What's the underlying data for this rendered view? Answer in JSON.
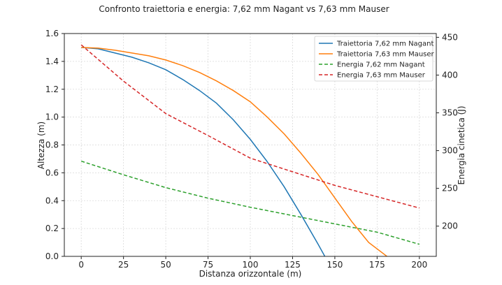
{
  "chart_data": {
    "type": "line",
    "title": "Confronto traiettoria e energia: 7,62 mm Nagant vs 7,63 mm Mauser",
    "xlabel": "Distanza orizzontale (m)",
    "ylabel_left": "Altezza (m)",
    "ylabel_right": "Energia cinetica (J)",
    "xlim": [
      -10,
      210
    ],
    "ylim_left": [
      0,
      1.6
    ],
    "ylim_right": [
      160,
      455
    ],
    "x_ticks": [
      0,
      25,
      50,
      75,
      100,
      125,
      150,
      175,
      200
    ],
    "y_ticks_left": [
      0.0,
      0.2,
      0.4,
      0.6,
      0.8,
      1.0,
      1.2,
      1.4,
      1.6
    ],
    "y_ticks_right": [
      200,
      250,
      300,
      350,
      400,
      450
    ],
    "grid": true,
    "legend_position": "top-right",
    "series": [
      {
        "name": "Traiettoria 7,62 mm Nagant",
        "axis": "left",
        "style": "solid",
        "color": "#1f77b4",
        "points": [
          [
            0,
            1.5
          ],
          [
            10,
            1.49
          ],
          [
            20,
            1.46
          ],
          [
            30,
            1.43
          ],
          [
            40,
            1.39
          ],
          [
            50,
            1.34
          ],
          [
            60,
            1.27
          ],
          [
            70,
            1.19
          ],
          [
            80,
            1.1
          ],
          [
            90,
            0.98
          ],
          [
            100,
            0.84
          ],
          [
            110,
            0.68
          ],
          [
            120,
            0.5
          ],
          [
            130,
            0.3
          ],
          [
            140,
            0.09
          ],
          [
            145,
            -0.02
          ]
        ]
      },
      {
        "name": "Traiettoria 7,63 mm Mauser",
        "axis": "left",
        "style": "solid",
        "color": "#ff7f0e",
        "points": [
          [
            0,
            1.5
          ],
          [
            10,
            1.495
          ],
          [
            20,
            1.48
          ],
          [
            30,
            1.46
          ],
          [
            40,
            1.44
          ],
          [
            50,
            1.41
          ],
          [
            60,
            1.37
          ],
          [
            70,
            1.32
          ],
          [
            80,
            1.26
          ],
          [
            90,
            1.19
          ],
          [
            100,
            1.11
          ],
          [
            110,
            1.0
          ],
          [
            120,
            0.88
          ],
          [
            130,
            0.74
          ],
          [
            140,
            0.59
          ],
          [
            150,
            0.42
          ],
          [
            160,
            0.25
          ],
          [
            170,
            0.1
          ],
          [
            183,
            -0.02
          ]
        ]
      },
      {
        "name": "Energia 7,62 mm Nagant",
        "axis": "right",
        "style": "dashed",
        "color": "#2ca02c",
        "points": [
          [
            0,
            286
          ],
          [
            25,
            268
          ],
          [
            50,
            251
          ],
          [
            75,
            237
          ],
          [
            100,
            225
          ],
          [
            125,
            214
          ],
          [
            150,
            203
          ],
          [
            175,
            192
          ],
          [
            200,
            176
          ]
        ]
      },
      {
        "name": "Energia 7,63 mm Mauser",
        "axis": "right",
        "style": "dashed",
        "color": "#d62728",
        "points": [
          [
            0,
            440
          ],
          [
            25,
            392
          ],
          [
            50,
            349
          ],
          [
            75,
            320
          ],
          [
            100,
            290
          ],
          [
            125,
            272
          ],
          [
            150,
            254
          ],
          [
            175,
            239
          ],
          [
            200,
            224
          ]
        ]
      }
    ]
  }
}
